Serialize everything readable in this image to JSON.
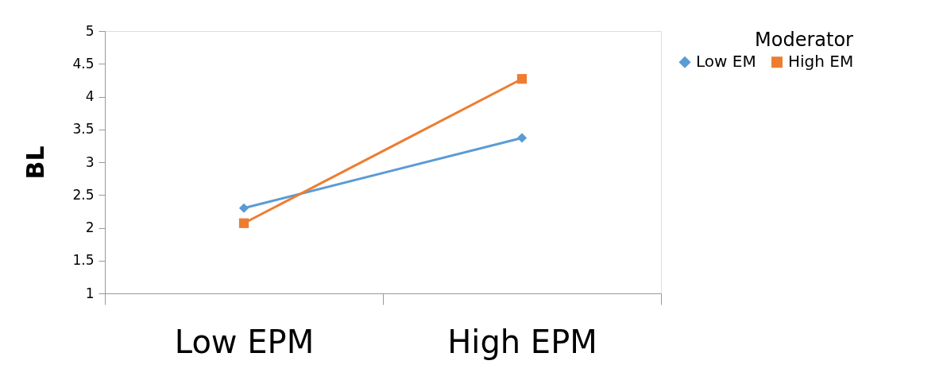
{
  "chart_data": {
    "type": "line",
    "ylabel": "BL",
    "legend_title": "Moderator",
    "categories": [
      "Low EPM",
      "High EPM"
    ],
    "series": [
      {
        "name": "Low EM",
        "color": "#5b9bd5",
        "marker": "diamond",
        "values": [
          2.3,
          3.37
        ]
      },
      {
        "name": "High EM",
        "color": "#ed7d31",
        "marker": "square",
        "values": [
          2.07,
          4.27
        ]
      }
    ],
    "ylim": [
      1,
      5
    ],
    "yticks": [
      1,
      1.5,
      2,
      2.5,
      3,
      3.5,
      4,
      4.5,
      5
    ],
    "grid": false,
    "legend": "right",
    "line_style": "solid"
  }
}
